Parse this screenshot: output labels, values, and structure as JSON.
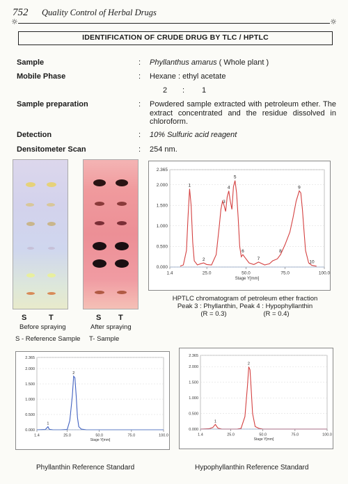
{
  "header": {
    "page_number": "752",
    "book_title": "Quality Control of Herbal Drugs",
    "ornament_left": "☼",
    "ornament_right": "☼"
  },
  "heading": "IDENTIFICATION OF CRUDE DRUG BY TLC / HPTLC",
  "details": {
    "sample_label": "Sample",
    "sample_value_italic": "Phyllanthus amarus",
    "sample_value_rest": " ( Whole plant )",
    "mobile_phase_label": "Mobile Phase",
    "mobile_phase_value": "Hexane : ethyl acetate",
    "mobile_ratio_a": "2",
    "mobile_ratio_colon": ":",
    "mobile_ratio_b": "1",
    "prep_label": "Sample preparation",
    "prep_value": "Powdered sample extracted with petroleum ether. The extract concentrated and the residue dissolved in chloroform.",
    "detection_label": "Detection",
    "detection_value": "10% Sulfuric acid reagent",
    "densito_label": "Densitometer Scan",
    "densito_value": "254 nm.",
    "colon": ":"
  },
  "plates": {
    "before_s": "S",
    "before_t": "T",
    "before_caption": "Before spraying",
    "after_s": "S",
    "after_t": "T",
    "after_caption": "After spraying",
    "legend": "S - Reference Sample",
    "legend2": "T- Sample"
  },
  "hptlc_caption": {
    "line1": "HPTLC chromatogram of petroleum  ether fraction",
    "line2": "Peak 3 :  Phyllanthin, Peak 4 : Hypophyllanthin",
    "line3_a": "(R  = 0.3)",
    "line3_b": "(R  = 0.4)"
  },
  "std_captions": {
    "phyllanthin": "Phyllanthin Reference Standard",
    "hypophyllanthin": "Hypophyllanthin Reference Standard"
  },
  "chart_data": [
    {
      "type": "line",
      "xlabel": "Stage Y[mm]",
      "ylabel": "",
      "xlim": [
        1.4,
        100.0
      ],
      "ylim": [
        0,
        2.365
      ],
      "xticks": [
        "1.4",
        "25.0",
        "50.0",
        "75.0",
        "100.0"
      ],
      "yticks": [
        "2.365",
        "2.000",
        "1.500",
        "1.000",
        "0.500",
        "0.000"
      ],
      "series": [
        {
          "color": "#d44040",
          "x": [
            8,
            10,
            12,
            13,
            14,
            15,
            16,
            17,
            19,
            21,
            23,
            25,
            28,
            31,
            33,
            34,
            35,
            36,
            37,
            38,
            39,
            40,
            41,
            42,
            43,
            44,
            45,
            46,
            47,
            48,
            50,
            52,
            55,
            58,
            62,
            65,
            67,
            70,
            72,
            75,
            78,
            80,
            82,
            84,
            85,
            86,
            87,
            88,
            90,
            92,
            95
          ],
          "y": [
            0.02,
            0.05,
            0.4,
            1.2,
            1.9,
            1.5,
            0.6,
            0.15,
            0.05,
            0.08,
            0.1,
            0.06,
            0.05,
            0.3,
            1.0,
            1.4,
            1.6,
            1.5,
            1.35,
            1.7,
            1.85,
            1.6,
            1.4,
            1.95,
            2.1,
            1.8,
            1.2,
            0.5,
            0.25,
            0.3,
            0.2,
            0.1,
            0.06,
            0.12,
            0.05,
            0.08,
            0.15,
            0.2,
            0.3,
            0.55,
            0.85,
            1.2,
            1.6,
            1.85,
            1.8,
            1.4,
            0.9,
            0.4,
            0.1,
            0.04,
            0.02
          ]
        }
      ],
      "peak_labels": [
        {
          "label": "1",
          "x": 14,
          "y": 1.9
        },
        {
          "label": "2",
          "x": 23,
          "y": 0.1
        },
        {
          "label": "3",
          "x": 36,
          "y": 1.5
        },
        {
          "label": "4",
          "x": 39,
          "y": 1.85
        },
        {
          "label": "5",
          "x": 43,
          "y": 2.1
        },
        {
          "label": "6",
          "x": 48,
          "y": 0.3
        },
        {
          "label": "7",
          "x": 58,
          "y": 0.12
        },
        {
          "label": "8",
          "x": 72,
          "y": 0.3
        },
        {
          "label": "9",
          "x": 84,
          "y": 1.85
        },
        {
          "label": "10",
          "x": 92,
          "y": 0.04
        }
      ]
    },
    {
      "type": "line",
      "xlabel": "Stage Y[mm]",
      "ylabel": "",
      "xlim": [
        1.4,
        100.0
      ],
      "ylim": [
        0,
        2.365
      ],
      "xticks": [
        "1.4",
        "25.0",
        "50.0",
        "75.0",
        "100.0"
      ],
      "yticks": [
        "2.365",
        "2.000",
        "1.500",
        "1.000",
        "0.500",
        "0.000"
      ],
      "series": [
        {
          "color": "#4060c0",
          "x": [
            1.4,
            8,
            10,
            11,
            12,
            14,
            20,
            25,
            27,
            29,
            30,
            31,
            32,
            33,
            34,
            36,
            40,
            50,
            75,
            100
          ],
          "y": [
            0,
            0.01,
            0.1,
            0.02,
            0.01,
            0,
            0,
            0.01,
            0.3,
            1.1,
            1.75,
            1.7,
            1.1,
            0.4,
            0.1,
            0.02,
            0,
            0,
            0,
            0
          ]
        }
      ],
      "peak_labels": [
        {
          "label": "1",
          "x": 10,
          "y": 0.1
        },
        {
          "label": "2",
          "x": 30,
          "y": 1.75
        }
      ]
    },
    {
      "type": "line",
      "xlabel": "Stage Y[mm]",
      "ylabel": "",
      "xlim": [
        1.4,
        100.0
      ],
      "ylim": [
        0,
        2.365
      ],
      "xticks": [
        "1.4",
        "25.0",
        "50.0",
        "75.0",
        "100.0"
      ],
      "yticks": [
        "2.365",
        "2.000",
        "1.500",
        "1.000",
        "0.500",
        "0.000"
      ],
      "series": [
        {
          "color": "#d44040",
          "x": [
            1.4,
            8,
            11,
            13,
            15,
            18,
            25,
            30,
            33,
            36,
            38,
            39,
            40,
            41,
            42,
            44,
            47,
            50,
            75,
            100
          ],
          "y": [
            0,
            0.01,
            0.05,
            0.15,
            0.03,
            0,
            0,
            0,
            0.02,
            0.4,
            1.4,
            2.0,
            1.9,
            1.2,
            0.5,
            0.08,
            0.02,
            0,
            0,
            0
          ]
        }
      ],
      "peak_labels": [
        {
          "label": "1",
          "x": 13,
          "y": 0.15
        },
        {
          "label": "2",
          "x": 39,
          "y": 2.0
        }
      ]
    }
  ]
}
